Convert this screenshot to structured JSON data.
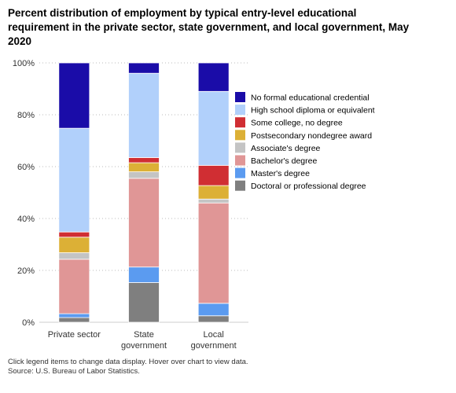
{
  "title": "Percent distribution of employment by typical entry-level educational requirement in the private sector, state government, and local government, May 2020",
  "footer": {
    "note": "Click legend items to change data display. Hover over chart to view data.",
    "source": "Source: U.S. Bureau of Labor Statistics."
  },
  "chart_data": {
    "type": "bar",
    "stacked": true,
    "title": "Percent distribution of employment by typical entry-level educational requirement in the private sector, state government, and local government, May 2020",
    "categories": [
      [
        "Private sector"
      ],
      [
        "State",
        "government"
      ],
      [
        "Local",
        "government"
      ]
    ],
    "ylim": [
      0,
      100
    ],
    "yticks": [
      "0%",
      "20%",
      "40%",
      "60%",
      "80%",
      "100%"
    ],
    "ytick_values": [
      0,
      20,
      40,
      60,
      80,
      100
    ],
    "grid": "horizontal dotted",
    "legend_placement": "right",
    "series": [
      {
        "name": "Doctoral or professional degree",
        "color": "#7f7f7f",
        "values": [
          1.8,
          15.3,
          2.5
        ]
      },
      {
        "name": "Master's degree",
        "color": "#5b9bf0",
        "values": [
          1.5,
          6.0,
          4.8
        ]
      },
      {
        "name": "Bachelor's degree",
        "color": "#e09696",
        "values": [
          21.0,
          34.2,
          38.7
        ]
      },
      {
        "name": "Associate's degree",
        "color": "#c4c4c4",
        "values": [
          2.5,
          2.5,
          1.5
        ]
      },
      {
        "name": "Postsecondary nondegree award",
        "color": "#dcb036",
        "values": [
          6.0,
          3.5,
          5.2
        ]
      },
      {
        "name": "Some college, no degree",
        "color": "#d02e33",
        "values": [
          2.0,
          2.0,
          7.8
        ]
      },
      {
        "name": "High school diploma or equivalent",
        "color": "#b1d0fb",
        "values": [
          40.0,
          32.5,
          28.5
        ]
      },
      {
        "name": "No formal educational credential",
        "color": "#1a0ca8",
        "values": [
          25.2,
          4.0,
          11.0
        ]
      }
    ],
    "legend_order": [
      "No formal educational credential",
      "High school diploma or equivalent",
      "Some college, no degree",
      "Postsecondary nondegree award",
      "Associate's degree",
      "Bachelor's degree",
      "Master's degree",
      "Doctoral or professional degree"
    ]
  }
}
